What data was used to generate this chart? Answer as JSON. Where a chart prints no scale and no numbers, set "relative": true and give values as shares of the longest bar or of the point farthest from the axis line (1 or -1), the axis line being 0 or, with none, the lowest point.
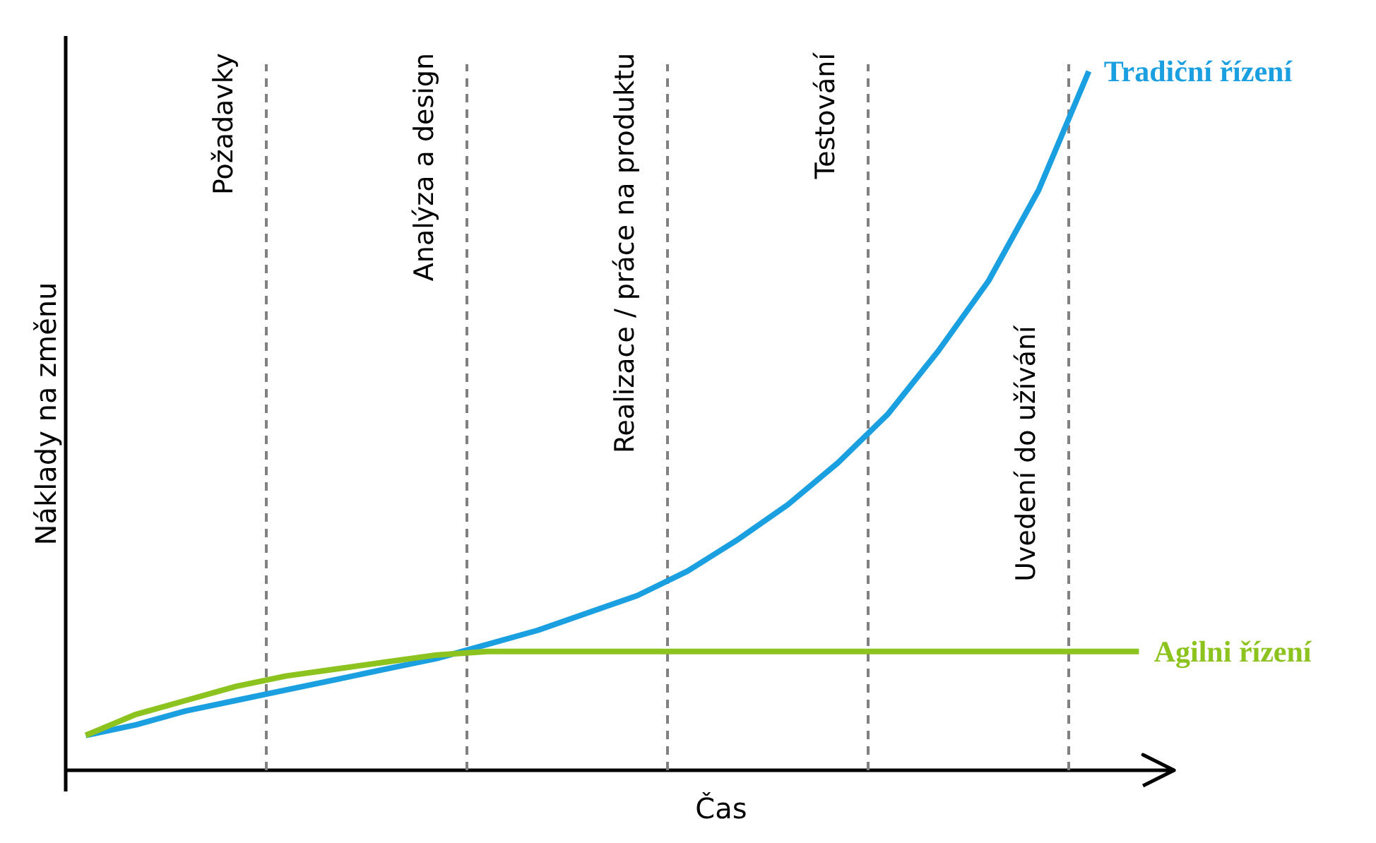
{
  "chart_data": {
    "type": "line",
    "relative": true,
    "xlabel": "Čas",
    "ylabel": "Náklady na změnu",
    "categories": [
      null,
      null,
      null,
      null,
      null,
      null,
      null,
      null,
      null,
      null,
      null,
      null,
      null,
      null,
      null,
      null,
      null,
      null,
      null,
      null,
      null,
      null
    ],
    "series": [
      {
        "name": "Tradiční řízení",
        "color": "#1a9fe0",
        "values": [
          0.05,
          0.065,
          0.085,
          0.1,
          0.115,
          0.13,
          0.145,
          0.16,
          0.18,
          0.2,
          0.225,
          0.25,
          0.285,
          0.33,
          0.38,
          0.44,
          0.51,
          0.6,
          0.7,
          0.83,
          1.0,
          null
        ]
      },
      {
        "name": "Agilni řízení",
        "color": "#8cc31e",
        "values": [
          0.05,
          0.08,
          0.1,
          0.12,
          0.135,
          0.145,
          0.155,
          0.165,
          0.17,
          0.17,
          0.17,
          0.17,
          0.17,
          0.17,
          0.17,
          0.17,
          0.17,
          0.17,
          0.17,
          0.17,
          0.17,
          0.17
        ]
      }
    ],
    "annotations": [
      "Požadavky",
      "Analýza a design",
      "Realizace / práce na produktu",
      "Testování",
      "Uvedení do užívání"
    ]
  }
}
